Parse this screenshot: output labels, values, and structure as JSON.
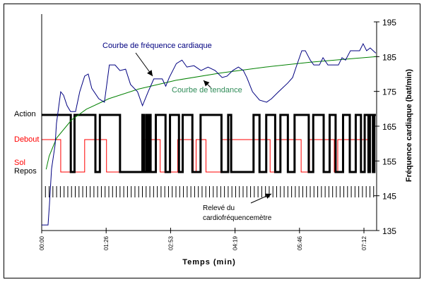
{
  "chart_data": {
    "type": "line",
    "xlabel": "Temps (min)",
    "ylabel": "Fréquence cardiaque (bat/min)",
    "xlim_s": [
      0,
      449
    ],
    "ylim": [
      135,
      195
    ],
    "y_ticks": [
      135,
      145,
      155,
      165,
      175,
      185,
      195
    ],
    "x_ticks": [
      {
        "t": 0,
        "label": "00:00"
      },
      {
        "t": 86.4,
        "label": "01:26"
      },
      {
        "t": 172.8,
        "label": "02:53"
      },
      {
        "t": 259.2,
        "label": "04:19"
      },
      {
        "t": 345.6,
        "label": "05:46"
      },
      {
        "t": 432,
        "label": "07:12"
      }
    ],
    "colors": {
      "heart_rate": "#000080",
      "trend": "#008000",
      "activity": "#000000",
      "posture": "#ff0000"
    },
    "heart_rate": {
      "label": "Courbe de fréquence cardiaque",
      "t": [
        0,
        8.5,
        10.4,
        13.2,
        18,
        19.8,
        21.7,
        25.5,
        29.3,
        34,
        38.7,
        45.4,
        51,
        57.6,
        62.4,
        67.1,
        76.5,
        84.1,
        90.7,
        98.3,
        104.9,
        112.5,
        119.1,
        128.5,
        135.1,
        142.7,
        150.3,
        161.6,
        166.3,
        171,
        180.5,
        188.1,
        194.7,
        204.1,
        213.6,
        223,
        232.5,
        241.9,
        248.5,
        256.1,
        263.7,
        270.3,
        275,
        282.6,
        292,
        301.5,
        308.1,
        317.5,
        329.8,
        336.4,
        341.1,
        348.7,
        353.4,
        360,
        364.8,
        372.3,
        377.1,
        383.7,
        397.8,
        402.6,
        407.3,
        413.9,
        419.6,
        426.2,
        430.9,
        435.6,
        440.4,
        447.9
      ],
      "bpm": [
        136.6,
        136.6,
        142.5,
        152.7,
        159.7,
        165.8,
        168.8,
        174.9,
        173.9,
        170.9,
        169.2,
        169.2,
        174.9,
        179.4,
        180,
        175.9,
        172.9,
        171.9,
        182.6,
        182.6,
        181,
        181.4,
        177,
        174.9,
        170.9,
        174.9,
        178.6,
        178.6,
        176.5,
        179,
        183,
        184,
        182,
        182.4,
        181,
        182,
        181,
        179,
        179.4,
        181,
        182,
        181,
        179,
        174.9,
        172.5,
        171.9,
        172.9,
        174.9,
        177.4,
        179,
        182,
        186.7,
        186.7,
        184,
        182.6,
        182.6,
        184.7,
        182.6,
        182.6,
        184.7,
        184,
        186.7,
        186.7,
        186.7,
        188.7,
        186.7,
        187.5,
        186
      ]
    },
    "trend": {
      "label": "Courbe de tendance",
      "t": [
        6,
        10,
        20,
        40,
        60,
        90,
        130,
        180,
        240,
        300,
        360,
        448
      ],
      "bpm": [
        152.6,
        156.4,
        161.6,
        166.8,
        169.9,
        172.9,
        175.7,
        178.2,
        180.3,
        182,
        183.4,
        185
      ]
    },
    "activity": {
      "levels": {
        "high": "Action",
        "low": "Repos"
      },
      "start_level": "high",
      "end_t": 448,
      "transitions_t": [
        39,
        44,
        72,
        78,
        105,
        135,
        137,
        140,
        142,
        144,
        146,
        153,
        166,
        172,
        184,
        189,
        202,
        213,
        241,
        250,
        254,
        284,
        292,
        301,
        313,
        320,
        330,
        339,
        358,
        364,
        378,
        386,
        394,
        404,
        413,
        421,
        428,
        433,
        438,
        440,
        444,
        446
      ]
    },
    "posture": {
      "levels": {
        "high": "Debout",
        "low": "Sol"
      },
      "start_level": "high",
      "end_t": 438.5,
      "transitions_t": [
        25.5,
        57.6,
        86.9,
        134.2,
        158.8,
        182.4,
        203.2,
        207,
        220.2,
        241,
        306.2,
        313.7,
        347.8,
        359.1,
        392.2,
        396.9
      ]
    },
    "recordings": {
      "label_line1": "Relevé du",
      "label_line2": "cardiofréquencemètre",
      "interval_s": 5,
      "start_s": 5,
      "end_s": 445
    }
  }
}
